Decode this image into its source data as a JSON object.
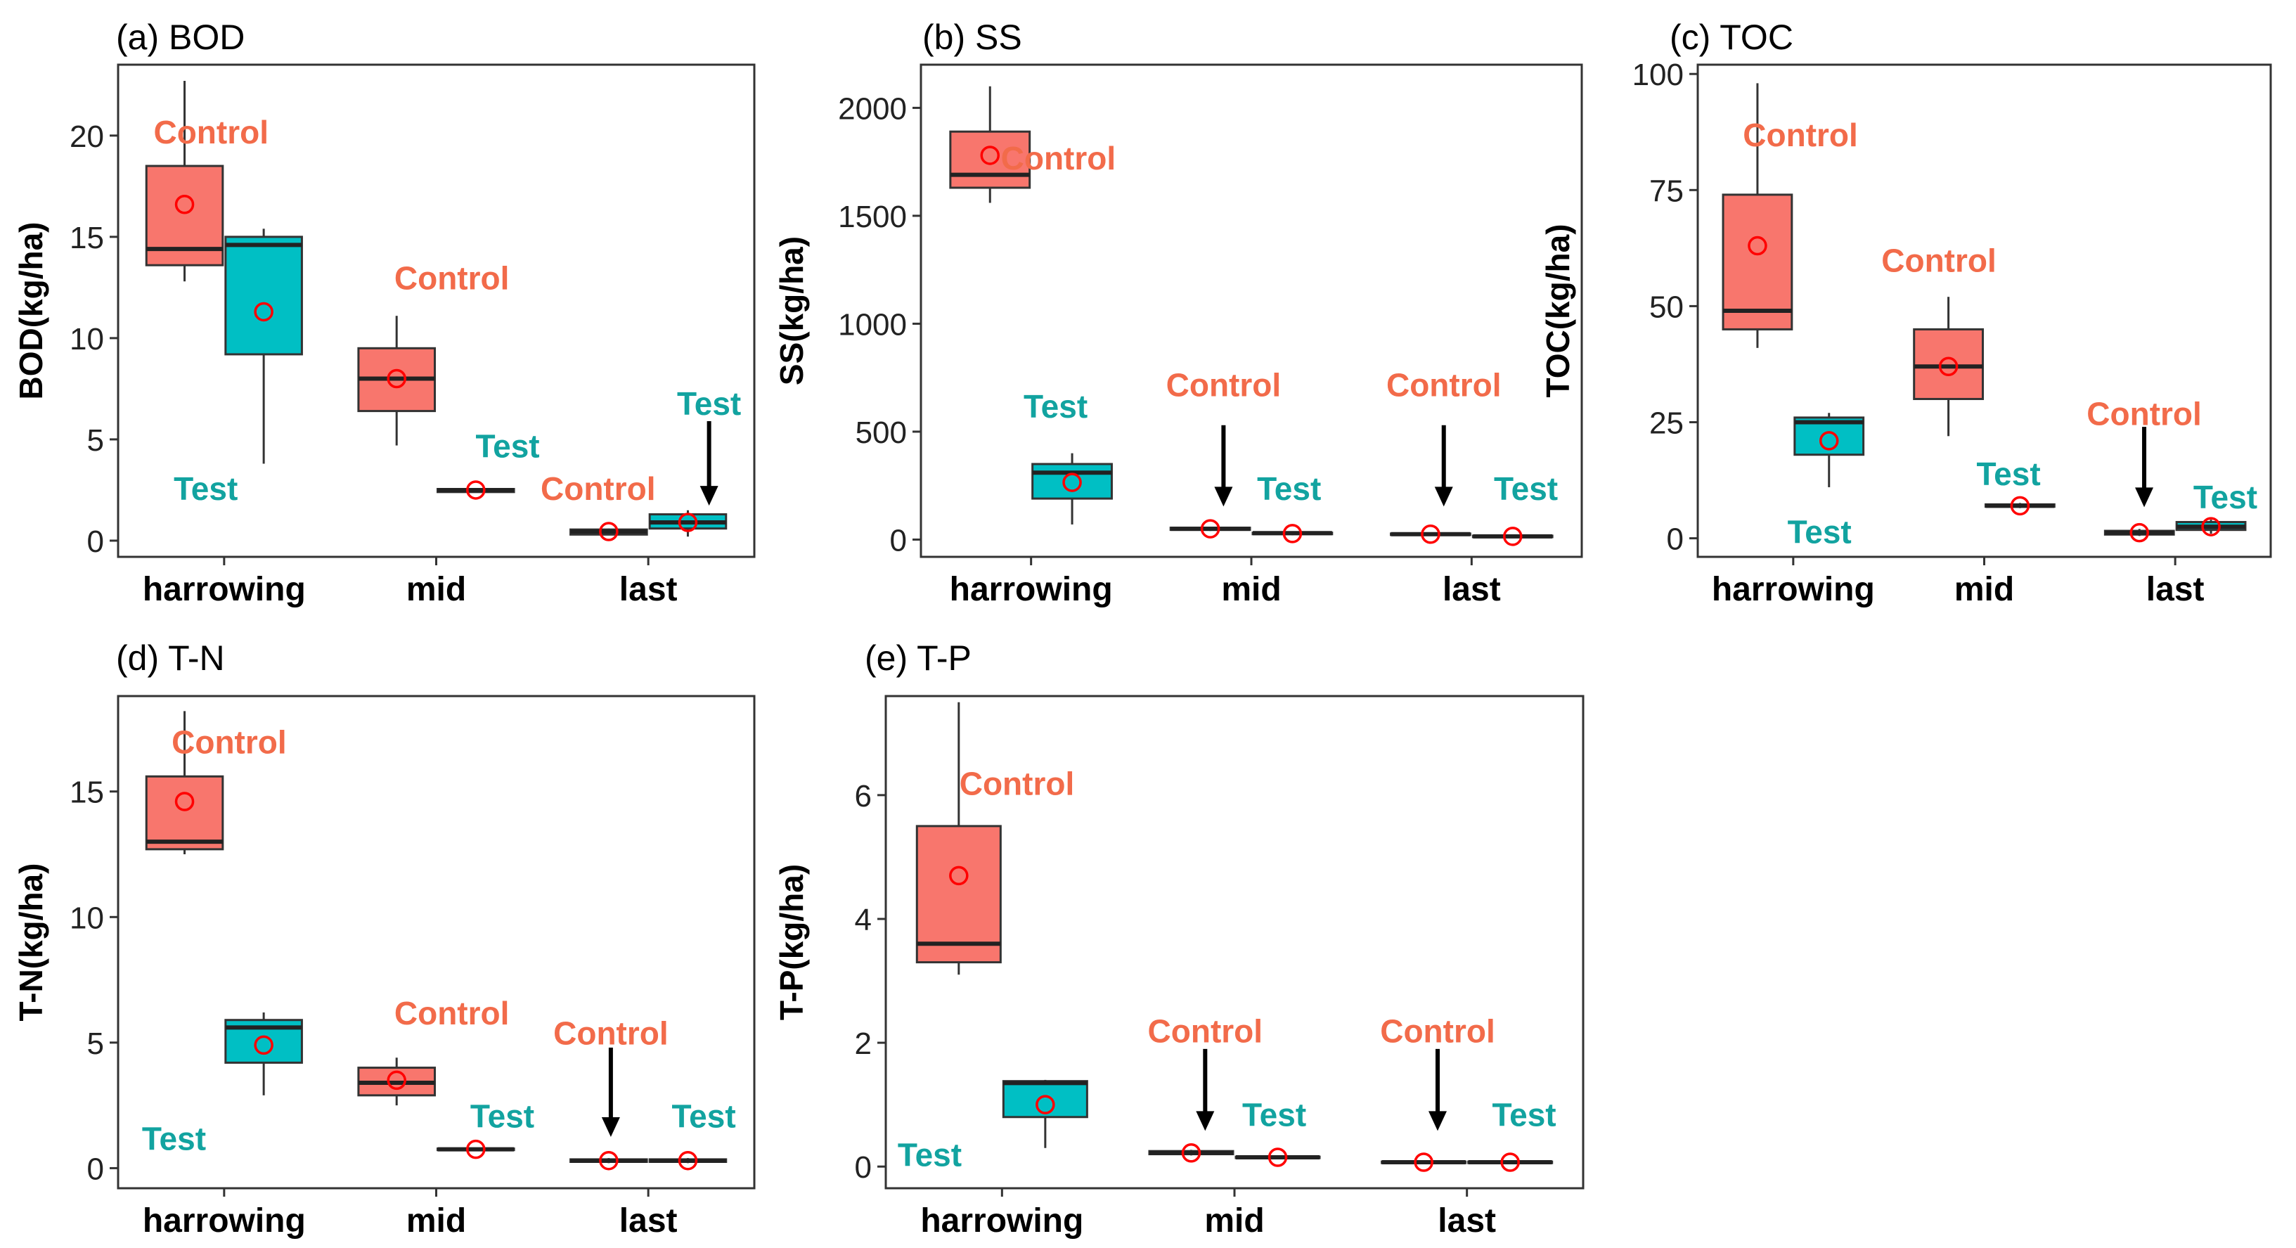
{
  "colors": {
    "control": "#F8766D",
    "test": "#00BFC4",
    "control_text": "#F26B4A",
    "test_text": "#12A3A0",
    "mean": "#FF0000",
    "axis": "#000000"
  },
  "panels": [
    {
      "title": "(a) BOD",
      "chart_data": {
        "type": "box",
        "ylabel": "BOD(kg/ha)",
        "categories": [
          "harrowing",
          "mid",
          "last"
        ],
        "ylim": [
          -0.8,
          23.5
        ],
        "yticks": [
          0,
          5,
          10,
          15,
          20
        ],
        "series": [
          {
            "name": "Control",
            "boxes": [
              {
                "category": "harrowing",
                "min": 12.8,
                "q1": 13.6,
                "median": 14.4,
                "q3": 18.5,
                "max": 22.7,
                "mean": 16.6
              },
              {
                "category": "mid",
                "min": 4.7,
                "q1": 6.4,
                "median": 8.0,
                "q3": 9.5,
                "max": 11.1,
                "mean": 8.0
              },
              {
                "category": "last",
                "min": 0.3,
                "q1": 0.3,
                "median": 0.45,
                "q3": 0.55,
                "max": 0.6,
                "mean": 0.45
              }
            ]
          },
          {
            "name": "Test",
            "boxes": [
              {
                "category": "harrowing",
                "min": 3.8,
                "q1": 9.2,
                "median": 14.6,
                "q3": 15.0,
                "max": 15.4,
                "mean": 11.3
              },
              {
                "category": "mid",
                "min": 2.4,
                "q1": 2.4,
                "median": 2.5,
                "q3": 2.55,
                "max": 2.6,
                "mean": 2.5
              },
              {
                "category": "last",
                "min": 0.2,
                "q1": 0.6,
                "median": 0.9,
                "q3": 1.3,
                "max": 1.5,
                "mean": 0.9
              }
            ]
          }
        ],
        "annotations": [
          {
            "text": "Control",
            "group": "control",
            "category": "harrowing",
            "side": "control",
            "dx": 0.25,
            "y": 20.2
          },
          {
            "text": "Test",
            "group": "test",
            "category": "harrowing",
            "side": "control",
            "dx": 0.2,
            "y": 2.6
          },
          {
            "text": "Control",
            "group": "control",
            "category": "mid",
            "side": "control",
            "dx": 0.52,
            "y": 13.0
          },
          {
            "text": "Test",
            "group": "test",
            "category": "mid",
            "side": "test",
            "dx": 0.3,
            "y": 4.7
          },
          {
            "text": "Control",
            "group": "control",
            "category": "last",
            "side": "control",
            "dx": -0.1,
            "y": 2.6
          },
          {
            "text": "Test",
            "group": "test",
            "category": "last",
            "side": "test",
            "dx": 0.2,
            "y": 6.8,
            "arrow": [
              5.9,
              1.8
            ]
          }
        ]
      }
    },
    {
      "title": "(b) SS",
      "chart_data": {
        "type": "box",
        "ylabel": "SS(kg/ha)",
        "categories": [
          "harrowing",
          "mid",
          "last"
        ],
        "ylim": [
          -80,
          2200
        ],
        "yticks": [
          0,
          500,
          1000,
          1500,
          2000
        ],
        "series": [
          {
            "name": "Control",
            "boxes": [
              {
                "category": "harrowing",
                "min": 1560,
                "q1": 1630,
                "median": 1690,
                "q3": 1890,
                "max": 2100,
                "mean": 1780
              },
              {
                "category": "mid",
                "min": 40,
                "q1": 45,
                "median": 50,
                "q3": 55,
                "max": 60,
                "mean": 50
              },
              {
                "category": "last",
                "min": 20,
                "q1": 22,
                "median": 25,
                "q3": 28,
                "max": 30,
                "mean": 25
              }
            ]
          },
          {
            "name": "Test",
            "boxes": [
              {
                "category": "harrowing",
                "min": 70,
                "q1": 190,
                "median": 310,
                "q3": 350,
                "max": 400,
                "mean": 265
              },
              {
                "category": "mid",
                "min": 20,
                "q1": 25,
                "median": 30,
                "q3": 32,
                "max": 35,
                "mean": 28
              },
              {
                "category": "last",
                "min": 10,
                "q1": 12,
                "median": 15,
                "q3": 18,
                "max": 20,
                "mean": 15
              }
            ]
          }
        ],
        "annotations": [
          {
            "text": "Control",
            "group": "control",
            "category": "harrowing",
            "side": "control",
            "dx": 0.62,
            "y": 1770
          },
          {
            "text": "Test",
            "group": "test",
            "category": "harrowing",
            "side": "test",
            "dx": -0.15,
            "y": 620
          },
          {
            "text": "Control",
            "group": "control",
            "category": "mid",
            "side": "control",
            "dx": 0.12,
            "y": 720,
            "arrow": [
              530,
              160
            ]
          },
          {
            "text": "Test",
            "group": "test",
            "category": "mid",
            "side": "test",
            "dx": -0.03,
            "y": 240
          },
          {
            "text": "Control",
            "group": "control",
            "category": "last",
            "side": "control",
            "dx": 0.12,
            "y": 720,
            "arrow": [
              530,
              160
            ]
          },
          {
            "text": "Test",
            "group": "test",
            "category": "last",
            "side": "test",
            "dx": 0.12,
            "y": 240
          }
        ]
      }
    },
    {
      "title": "(c) TOC",
      "chart_data": {
        "type": "box",
        "ylabel": "TOC(kg/ha)",
        "categories": [
          "harrowing",
          "mid",
          "last"
        ],
        "ylim": [
          -4,
          102
        ],
        "yticks": [
          0,
          25,
          50,
          75,
          100
        ],
        "series": [
          {
            "name": "Control",
            "boxes": [
              {
                "category": "harrowing",
                "min": 41,
                "q1": 45,
                "median": 49,
                "q3": 74,
                "max": 98,
                "mean": 63
              },
              {
                "category": "mid",
                "min": 22,
                "q1": 30,
                "median": 37,
                "q3": 45,
                "max": 52,
                "mean": 37
              },
              {
                "category": "last",
                "min": 0.5,
                "q1": 0.8,
                "median": 1.2,
                "q3": 1.6,
                "max": 2,
                "mean": 1.2
              }
            ]
          },
          {
            "name": "Test",
            "boxes": [
              {
                "category": "harrowing",
                "min": 11,
                "q1": 18,
                "median": 25,
                "q3": 26,
                "max": 27,
                "mean": 21
              },
              {
                "category": "mid",
                "min": 6.5,
                "q1": 6.8,
                "median": 7,
                "q3": 7.3,
                "max": 7.6,
                "mean": 7
              },
              {
                "category": "last",
                "min": 1,
                "q1": 1.8,
                "median": 2.5,
                "q3": 3.5,
                "max": 4,
                "mean": 2.5
              }
            ]
          }
        ],
        "annotations": [
          {
            "text": "Control",
            "group": "control",
            "category": "harrowing",
            "side": "control",
            "dx": 0.45,
            "y": 87
          },
          {
            "text": "Test",
            "group": "test",
            "category": "harrowing",
            "side": "test",
            "dx": -0.1,
            "y": 1.5
          },
          {
            "text": "Control",
            "group": "control",
            "category": "mid",
            "side": "control",
            "dx": -0.1,
            "y": 60
          },
          {
            "text": "Test",
            "group": "test",
            "category": "mid",
            "side": "test",
            "dx": -0.12,
            "y": 14
          },
          {
            "text": "Control",
            "group": "control",
            "category": "last",
            "side": "control",
            "dx": 0.05,
            "y": 27,
            "arrow": [
              24,
              7
            ]
          },
          {
            "text": "Test",
            "group": "test",
            "category": "last",
            "side": "test",
            "dx": 0.15,
            "y": 9
          }
        ]
      }
    },
    {
      "title": "(d) T-N",
      "chart_data": {
        "type": "box",
        "ylabel": "T-N(kg/ha)",
        "categories": [
          "harrowing",
          "mid",
          "last"
        ],
        "ylim": [
          -0.8,
          18.8
        ],
        "yticks": [
          0,
          5,
          10,
          15
        ],
        "series": [
          {
            "name": "Control",
            "boxes": [
              {
                "category": "harrowing",
                "min": 12.5,
                "q1": 12.7,
                "median": 13.0,
                "q3": 15.6,
                "max": 18.2,
                "mean": 14.6
              },
              {
                "category": "mid",
                "min": 2.5,
                "q1": 2.9,
                "median": 3.4,
                "q3": 4.0,
                "max": 4.4,
                "mean": 3.5
              },
              {
                "category": "last",
                "min": 0.2,
                "q1": 0.25,
                "median": 0.3,
                "q3": 0.35,
                "max": 0.4,
                "mean": 0.3
              }
            ]
          },
          {
            "name": "Test",
            "boxes": [
              {
                "category": "harrowing",
                "min": 2.9,
                "q1": 4.2,
                "median": 5.6,
                "q3": 5.9,
                "max": 6.2,
                "mean": 4.9
              },
              {
                "category": "mid",
                "min": 0.7,
                "q1": 0.72,
                "median": 0.75,
                "q3": 0.78,
                "max": 0.8,
                "mean": 0.75
              },
              {
                "category": "last",
                "min": 0.2,
                "q1": 0.25,
                "median": 0.3,
                "q3": 0.35,
                "max": 0.4,
                "mean": 0.3
              }
            ]
          }
        ],
        "annotations": [
          {
            "text": "Control",
            "group": "control",
            "category": "harrowing",
            "side": "control",
            "dx": 0.42,
            "y": 17.0
          },
          {
            "text": "Test",
            "group": "test",
            "category": "harrowing",
            "side": "control",
            "dx": -0.1,
            "y": 1.2
          },
          {
            "text": "Control",
            "group": "control",
            "category": "mid",
            "side": "control",
            "dx": 0.52,
            "y": 6.2
          },
          {
            "text": "Test",
            "group": "test",
            "category": "mid",
            "side": "test",
            "dx": 0.25,
            "y": 2.1
          },
          {
            "text": "Control",
            "group": "control",
            "category": "last",
            "side": "control",
            "dx": 0.02,
            "y": 5.4,
            "arrow": [
              4.8,
              1.3
            ]
          },
          {
            "text": "Test",
            "group": "test",
            "category": "last",
            "side": "test",
            "dx": 0.15,
            "y": 2.1
          }
        ]
      }
    },
    {
      "title": "(e) T-P",
      "chart_data": {
        "type": "box",
        "ylabel": "T-P(kg/ha)",
        "categories": [
          "harrowing",
          "mid",
          "last"
        ],
        "ylim": [
          -0.35,
          7.6
        ],
        "yticks": [
          0,
          2,
          4,
          6
        ],
        "series": [
          {
            "name": "Control",
            "boxes": [
              {
                "category": "harrowing",
                "min": 3.1,
                "q1": 3.3,
                "median": 3.6,
                "q3": 5.5,
                "max": 7.5,
                "mean": 4.7
              },
              {
                "category": "mid",
                "min": 0.18,
                "q1": 0.2,
                "median": 0.22,
                "q3": 0.25,
                "max": 0.27,
                "mean": 0.22
              },
              {
                "category": "last",
                "min": 0.05,
                "q1": 0.06,
                "median": 0.07,
                "q3": 0.08,
                "max": 0.09,
                "mean": 0.07
              }
            ]
          },
          {
            "name": "Test",
            "boxes": [
              {
                "category": "harrowing",
                "min": 0.3,
                "q1": 0.8,
                "median": 1.35,
                "q3": 1.38,
                "max": 1.4,
                "mean": 1.0
              },
              {
                "category": "mid",
                "min": 0.13,
                "q1": 0.14,
                "median": 0.15,
                "q3": 0.16,
                "max": 0.17,
                "mean": 0.15
              },
              {
                "category": "last",
                "min": 0.05,
                "q1": 0.06,
                "median": 0.07,
                "q3": 0.08,
                "max": 0.09,
                "mean": 0.07
              }
            ]
          }
        ],
        "annotations": [
          {
            "text": "Control",
            "group": "control",
            "category": "harrowing",
            "side": "control",
            "dx": 0.5,
            "y": 6.2
          },
          {
            "text": "Test",
            "group": "test",
            "category": "harrowing",
            "side": "control",
            "dx": -0.25,
            "y": 0.2
          },
          {
            "text": "Control",
            "group": "control",
            "category": "mid",
            "side": "control",
            "dx": 0.12,
            "y": 2.2,
            "arrow": [
              1.9,
              0.6
            ]
          },
          {
            "text": "Test",
            "group": "test",
            "category": "mid",
            "side": "test",
            "dx": -0.03,
            "y": 0.85
          },
          {
            "text": "Control",
            "group": "control",
            "category": "last",
            "side": "control",
            "dx": 0.12,
            "y": 2.2,
            "arrow": [
              1.9,
              0.6
            ]
          },
          {
            "text": "Test",
            "group": "test",
            "category": "last",
            "side": "test",
            "dx": 0.12,
            "y": 0.85
          }
        ]
      }
    }
  ]
}
